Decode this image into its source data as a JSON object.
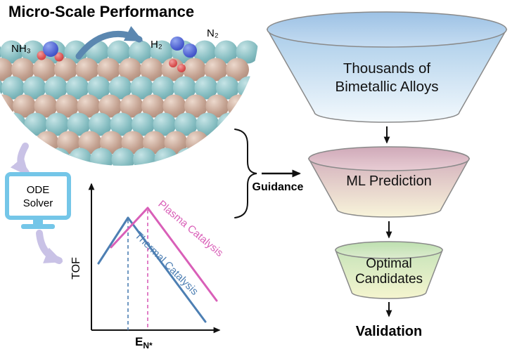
{
  "title": "Micro-Scale Performance",
  "surface": {
    "nh3_label": "NH₃",
    "h2_label": "H₂",
    "n2_label": "N₂"
  },
  "ode_solver": {
    "line1": "ODE",
    "line2": "Solver"
  },
  "plot": {
    "ylabel": "TOF",
    "xlabel_base": "E",
    "xlabel_sub": "N*",
    "series": [
      {
        "name": "Plasma Catalysis",
        "color": "#d95fb8"
      },
      {
        "name": "Thermal Catalysis",
        "color": "#4d7fb3"
      }
    ],
    "type": "volcano-curves",
    "note_axes_unlabeled": "no numeric ticks shown"
  },
  "guidance_label": "Guidance",
  "funnels": [
    {
      "lines": [
        "Thousands of",
        "Bimetallic Alloys"
      ]
    },
    {
      "lines": [
        "ML Prediction"
      ]
    },
    {
      "lines": [
        "Optimal",
        "Candidates"
      ]
    }
  ],
  "validation_label": "Validation",
  "colors": {
    "plasma_curve": "#d95fb8",
    "thermal_curve": "#4d7fb3",
    "teal_sphere": "#7db8bc",
    "tan_sphere": "#c2a192",
    "lavender_arrow": "#c9c2e6",
    "monitor_blue": "#74c6e8",
    "reaction_arrow_blue": "#5b87b0",
    "funnel_blue_top": "#a9cce9",
    "funnel_pink_top": "#d5b3be",
    "funnel_green_top": "#c8e4ba",
    "arrow_black": "#111111"
  }
}
